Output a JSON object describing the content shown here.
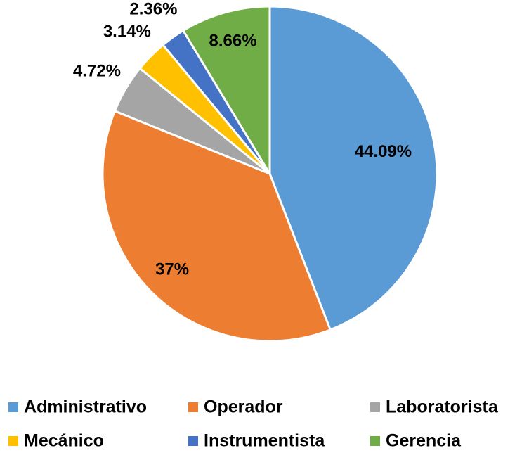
{
  "chart_data": {
    "type": "pie",
    "categories": [
      "Administrativo",
      "Operador",
      "Laboratorista",
      "Mecánico",
      "Instrumentista",
      "Gerencia"
    ],
    "values": [
      44.09,
      37,
      4.72,
      3.14,
      2.36,
      8.66
    ],
    "value_labels": [
      "44.09%",
      "37%",
      "4.72%",
      "3.14%",
      "2.36%",
      "8.66%"
    ],
    "colors": [
      "#5b9bd5",
      "#ed7d31",
      "#a5a5a5",
      "#ffc000",
      "#4472c4",
      "#70ad47"
    ],
    "legend": "bottom"
  }
}
